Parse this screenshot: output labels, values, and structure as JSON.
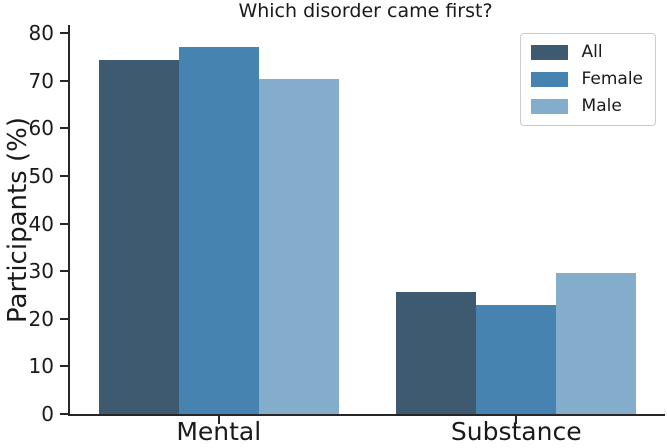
{
  "chart_data": {
    "type": "bar",
    "title": "Which disorder came first?",
    "xlabel": "",
    "ylabel": "Participants (%)",
    "categories": [
      "Mental",
      "Substance"
    ],
    "series": [
      {
        "name": "All",
        "color": "#3d5a71",
        "values": [
          74.3,
          25.7
        ]
      },
      {
        "name": "Female",
        "color": "#4783b0",
        "values": [
          77.0,
          23.0
        ]
      },
      {
        "name": "Male",
        "color": "#84accb",
        "values": [
          70.4,
          29.6
        ]
      }
    ],
    "ylim": [
      0,
      81.7
    ],
    "yticks": [
      0,
      10,
      20,
      30,
      40,
      50,
      60,
      70,
      80
    ],
    "legend_position": "upper right",
    "grid": false,
    "axis_color": "#262626",
    "background_color": "#ffffff"
  }
}
